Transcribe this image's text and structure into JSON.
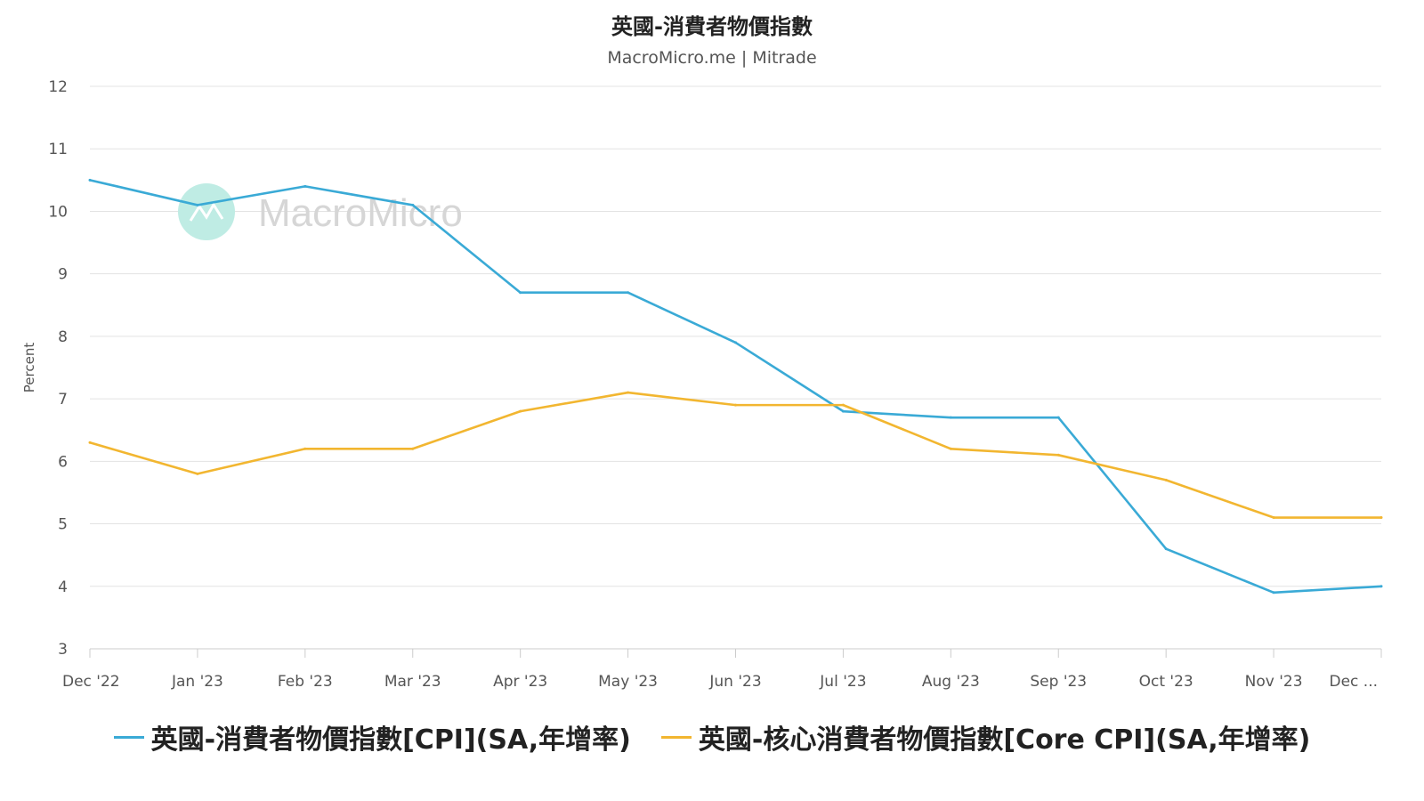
{
  "chart_data": {
    "type": "line",
    "title": "英國-消費者物價指數",
    "subtitle": "MacroMicro.me | Mitrade",
    "watermark": "MacroMicro",
    "ylabel": "Percent",
    "xlabel": "",
    "ylim": [
      3,
      12
    ],
    "yticks": [
      3,
      4,
      5,
      6,
      7,
      8,
      9,
      10,
      11,
      12
    ],
    "categories": [
      "Dec '22",
      "Jan '23",
      "Feb '23",
      "Mar '23",
      "Apr '23",
      "May '23",
      "Jun '23",
      "Jul '23",
      "Aug '23",
      "Sep '23",
      "Oct '23",
      "Nov '23",
      "Dec ..."
    ],
    "grid": true,
    "legend_position": "bottom",
    "series": [
      {
        "name": "英國-消費者物價指數[CPI](SA,年增率)",
        "color": "#3aaad6",
        "values": [
          10.5,
          10.1,
          10.4,
          10.1,
          8.7,
          8.7,
          7.9,
          6.8,
          6.7,
          6.7,
          4.6,
          3.9,
          4.0
        ]
      },
      {
        "name": "英國-核心消費者物價指數[Core CPI](SA,年增率)",
        "color": "#f2b630",
        "values": [
          6.3,
          5.8,
          6.2,
          6.2,
          6.8,
          7.1,
          6.9,
          6.9,
          6.2,
          6.1,
          5.7,
          5.1,
          5.1
        ]
      }
    ]
  }
}
